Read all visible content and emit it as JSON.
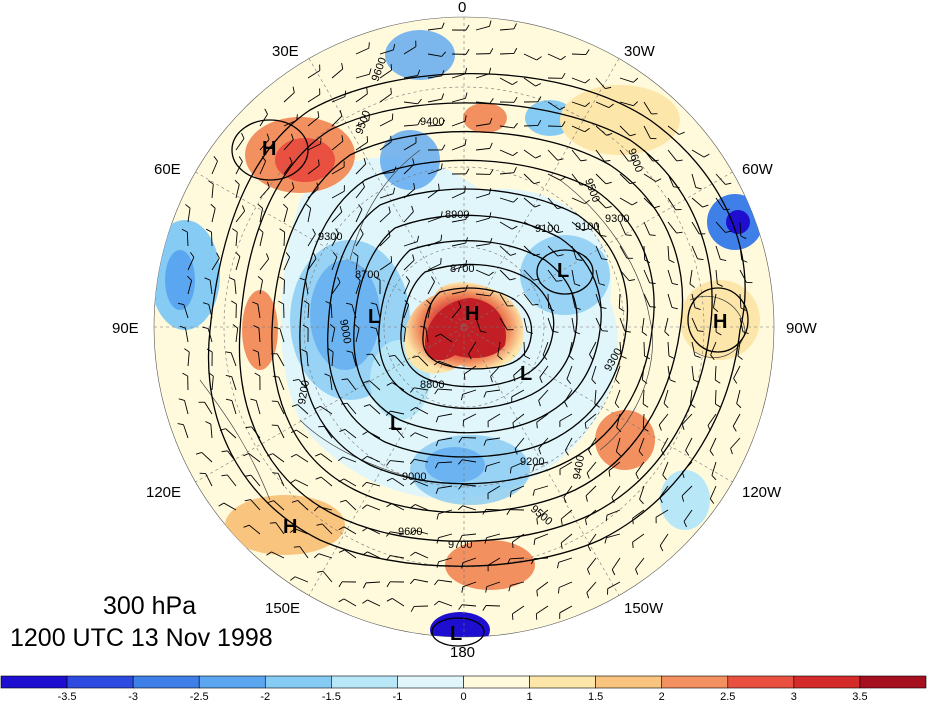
{
  "title": {
    "level": "300 hPa",
    "valid_time": "1200 UTC 13 Nov 1998"
  },
  "longitude_labels": [
    "0",
    "30W",
    "60W",
    "90W",
    "120W",
    "150W",
    "180",
    "150E",
    "120E",
    "90E",
    "60E",
    "30E"
  ],
  "pressure_centers": [
    {
      "type": "H"
    },
    {
      "type": "H"
    },
    {
      "type": "H"
    },
    {
      "type": "H"
    },
    {
      "type": "L"
    },
    {
      "type": "L"
    },
    {
      "type": "L"
    },
    {
      "type": "L"
    },
    {
      "type": "L"
    }
  ],
  "contour_labels": [
    "9600",
    "9500",
    "9400",
    "9300",
    "9200",
    "9100",
    "9000",
    "8900",
    "8800",
    "8700",
    "9700",
    "9600",
    "9500",
    "9400",
    "9300",
    "9100",
    "8700",
    "9600",
    "9300",
    "9500",
    "9000",
    "9200"
  ],
  "colorbar": {
    "tick_labels": [
      "-3.5",
      "-3",
      "-2.5",
      "-2",
      "-1.5",
      "-1",
      "0",
      "1",
      "1.5",
      "2",
      "2.5",
      "3",
      "3.5"
    ],
    "colors": [
      "#1e0fd0",
      "#2d4be0",
      "#3f7fe8",
      "#5aa6f0",
      "#86cbf4",
      "#b8e8f8",
      "#e0f6fa",
      "#fffadc",
      "#fde6aa",
      "#f9c47e",
      "#f29060",
      "#e95040",
      "#d42a2a",
      "#a50f1e"
    ]
  }
}
